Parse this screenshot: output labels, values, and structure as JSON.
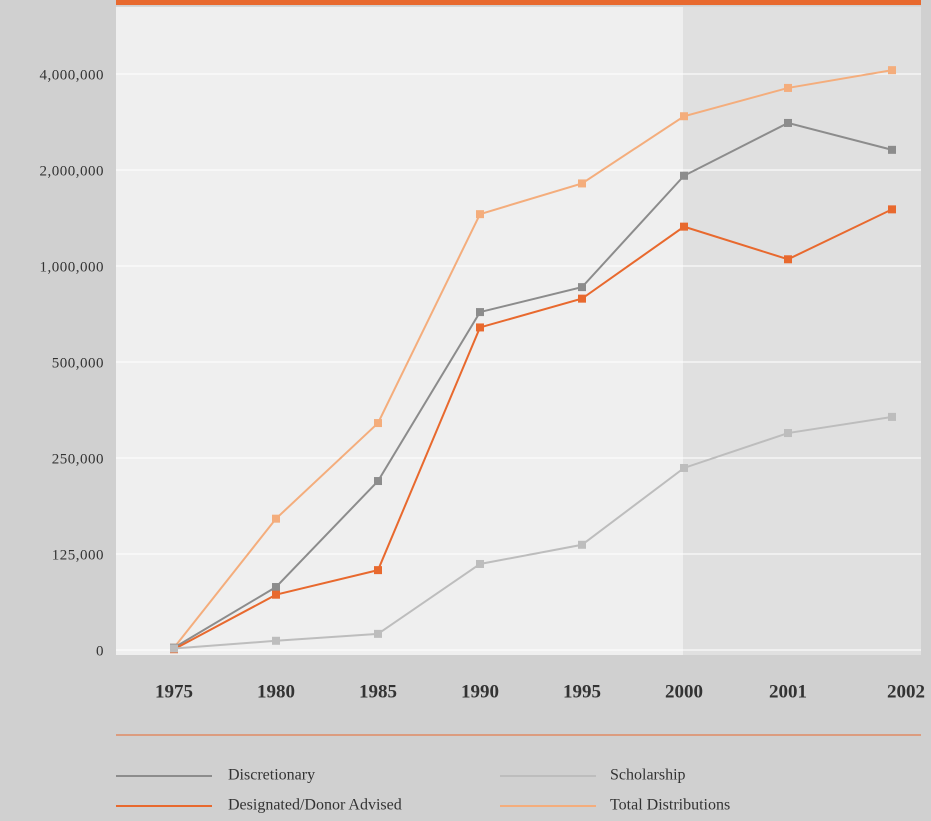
{
  "chart_data": {
    "type": "line",
    "categories": [
      "1975",
      "1980",
      "1985",
      "1990",
      "1995",
      "2000",
      "2001",
      "2002"
    ],
    "series": [
      {
        "name": "Total Distributions",
        "color": "#f4ad7c",
        "values": [
          3000,
          171000,
          341000,
          1540000,
          1860000,
          3120000,
          3710000,
          4080000
        ]
      },
      {
        "name": "Discretionary",
        "color": "#8c8c8c",
        "values": [
          3000,
          82000,
          220000,
          760000,
          890000,
          1940000,
          2980000,
          2420000
        ]
      },
      {
        "name": "Designated/Donor Advised",
        "color": "#e8692e",
        "values": [
          1000,
          72000,
          104000,
          680000,
          830000,
          1410000,
          1070000,
          1590000
        ]
      },
      {
        "name": "Scholarship",
        "color": "#bdbdbd",
        "values": [
          2000,
          12000,
          21000,
          112000,
          137000,
          237000,
          315000,
          357000
        ]
      }
    ],
    "ylim": [
      0,
      5400000
    ],
    "yticks": [
      0,
      {
        "value": 125000,
        "label": "125,000"
      },
      {
        "value": 250000,
        "label": "250,000"
      },
      {
        "value": 500000,
        "label": "500,000"
      },
      {
        "value": 1000000,
        "label": "1,000,000"
      },
      {
        "value": 2000000,
        "label": "2,000,000"
      },
      {
        "value": 4000000,
        "label": "4,000,000"
      }
    ],
    "grid": true
  }
}
